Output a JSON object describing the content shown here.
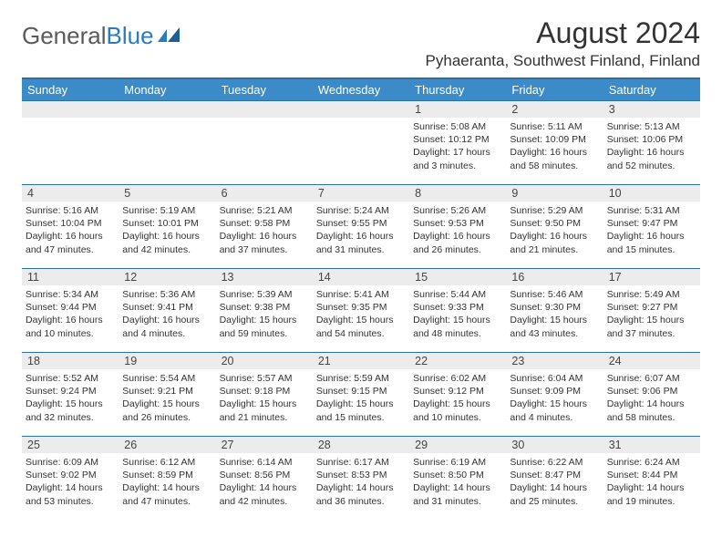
{
  "brand": {
    "part1": "General",
    "part2": "Blue"
  },
  "title": "August 2024",
  "location": "Pyhaeranta, Southwest Finland, Finland",
  "colors": {
    "header_bg": "#3b8bc8",
    "header_border": "#2b6fa8",
    "daynum_bg": "#ececec",
    "text": "#333333",
    "brand_gray": "#5a5a5a",
    "brand_blue": "#2b7bbf"
  },
  "weekdays": [
    "Sunday",
    "Monday",
    "Tuesday",
    "Wednesday",
    "Thursday",
    "Friday",
    "Saturday"
  ],
  "weeks": [
    [
      null,
      null,
      null,
      null,
      {
        "n": "1",
        "sr": "5:08 AM",
        "ss": "10:12 PM",
        "dl": "17 hours and 3 minutes."
      },
      {
        "n": "2",
        "sr": "5:11 AM",
        "ss": "10:09 PM",
        "dl": "16 hours and 58 minutes."
      },
      {
        "n": "3",
        "sr": "5:13 AM",
        "ss": "10:06 PM",
        "dl": "16 hours and 52 minutes."
      }
    ],
    [
      {
        "n": "4",
        "sr": "5:16 AM",
        "ss": "10:04 PM",
        "dl": "16 hours and 47 minutes."
      },
      {
        "n": "5",
        "sr": "5:19 AM",
        "ss": "10:01 PM",
        "dl": "16 hours and 42 minutes."
      },
      {
        "n": "6",
        "sr": "5:21 AM",
        "ss": "9:58 PM",
        "dl": "16 hours and 37 minutes."
      },
      {
        "n": "7",
        "sr": "5:24 AM",
        "ss": "9:55 PM",
        "dl": "16 hours and 31 minutes."
      },
      {
        "n": "8",
        "sr": "5:26 AM",
        "ss": "9:53 PM",
        "dl": "16 hours and 26 minutes."
      },
      {
        "n": "9",
        "sr": "5:29 AM",
        "ss": "9:50 PM",
        "dl": "16 hours and 21 minutes."
      },
      {
        "n": "10",
        "sr": "5:31 AM",
        "ss": "9:47 PM",
        "dl": "16 hours and 15 minutes."
      }
    ],
    [
      {
        "n": "11",
        "sr": "5:34 AM",
        "ss": "9:44 PM",
        "dl": "16 hours and 10 minutes."
      },
      {
        "n": "12",
        "sr": "5:36 AM",
        "ss": "9:41 PM",
        "dl": "16 hours and 4 minutes."
      },
      {
        "n": "13",
        "sr": "5:39 AM",
        "ss": "9:38 PM",
        "dl": "15 hours and 59 minutes."
      },
      {
        "n": "14",
        "sr": "5:41 AM",
        "ss": "9:35 PM",
        "dl": "15 hours and 54 minutes."
      },
      {
        "n": "15",
        "sr": "5:44 AM",
        "ss": "9:33 PM",
        "dl": "15 hours and 48 minutes."
      },
      {
        "n": "16",
        "sr": "5:46 AM",
        "ss": "9:30 PM",
        "dl": "15 hours and 43 minutes."
      },
      {
        "n": "17",
        "sr": "5:49 AM",
        "ss": "9:27 PM",
        "dl": "15 hours and 37 minutes."
      }
    ],
    [
      {
        "n": "18",
        "sr": "5:52 AM",
        "ss": "9:24 PM",
        "dl": "15 hours and 32 minutes."
      },
      {
        "n": "19",
        "sr": "5:54 AM",
        "ss": "9:21 PM",
        "dl": "15 hours and 26 minutes."
      },
      {
        "n": "20",
        "sr": "5:57 AM",
        "ss": "9:18 PM",
        "dl": "15 hours and 21 minutes."
      },
      {
        "n": "21",
        "sr": "5:59 AM",
        "ss": "9:15 PM",
        "dl": "15 hours and 15 minutes."
      },
      {
        "n": "22",
        "sr": "6:02 AM",
        "ss": "9:12 PM",
        "dl": "15 hours and 10 minutes."
      },
      {
        "n": "23",
        "sr": "6:04 AM",
        "ss": "9:09 PM",
        "dl": "15 hours and 4 minutes."
      },
      {
        "n": "24",
        "sr": "6:07 AM",
        "ss": "9:06 PM",
        "dl": "14 hours and 58 minutes."
      }
    ],
    [
      {
        "n": "25",
        "sr": "6:09 AM",
        "ss": "9:02 PM",
        "dl": "14 hours and 53 minutes."
      },
      {
        "n": "26",
        "sr": "6:12 AM",
        "ss": "8:59 PM",
        "dl": "14 hours and 47 minutes."
      },
      {
        "n": "27",
        "sr": "6:14 AM",
        "ss": "8:56 PM",
        "dl": "14 hours and 42 minutes."
      },
      {
        "n": "28",
        "sr": "6:17 AM",
        "ss": "8:53 PM",
        "dl": "14 hours and 36 minutes."
      },
      {
        "n": "29",
        "sr": "6:19 AM",
        "ss": "8:50 PM",
        "dl": "14 hours and 31 minutes."
      },
      {
        "n": "30",
        "sr": "6:22 AM",
        "ss": "8:47 PM",
        "dl": "14 hours and 25 minutes."
      },
      {
        "n": "31",
        "sr": "6:24 AM",
        "ss": "8:44 PM",
        "dl": "14 hours and 19 minutes."
      }
    ]
  ],
  "labels": {
    "sunrise": "Sunrise: ",
    "sunset": "Sunset: ",
    "daylight": "Daylight: "
  }
}
